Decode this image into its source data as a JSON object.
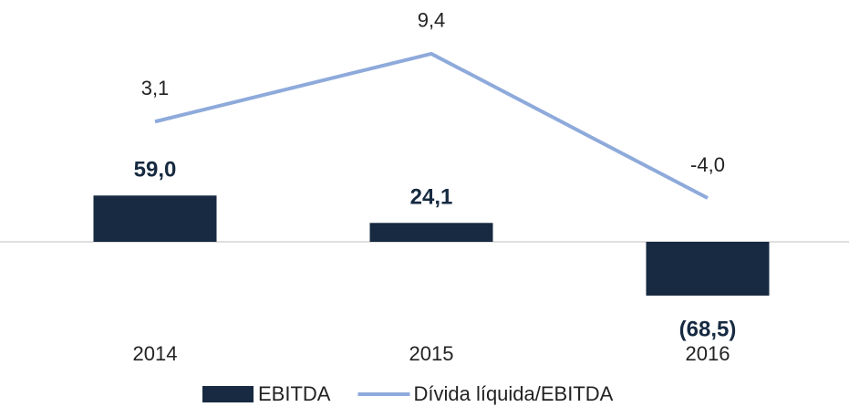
{
  "chart_data": {
    "type": "combo",
    "categories": [
      "2014",
      "2015",
      "2016"
    ],
    "series": [
      {
        "name": "EBITDA",
        "type": "bar",
        "color": "#172a41",
        "values": [
          59.0,
          24.1,
          -68.5
        ],
        "value_labels": [
          "59,0",
          "24,1",
          "(68,5)"
        ]
      },
      {
        "name": "Dívida líquida/EBITDA",
        "type": "line",
        "axis": "y2",
        "color": "#8eaadb",
        "values": [
          3.1,
          9.4,
          -4.0
        ],
        "value_labels": [
          "3,1",
          "9,4",
          "-4,0"
        ]
      }
    ],
    "ylim": [
      -150,
      300
    ],
    "y2lim": [
      -19,
      13.8
    ],
    "legend": "bottom"
  }
}
